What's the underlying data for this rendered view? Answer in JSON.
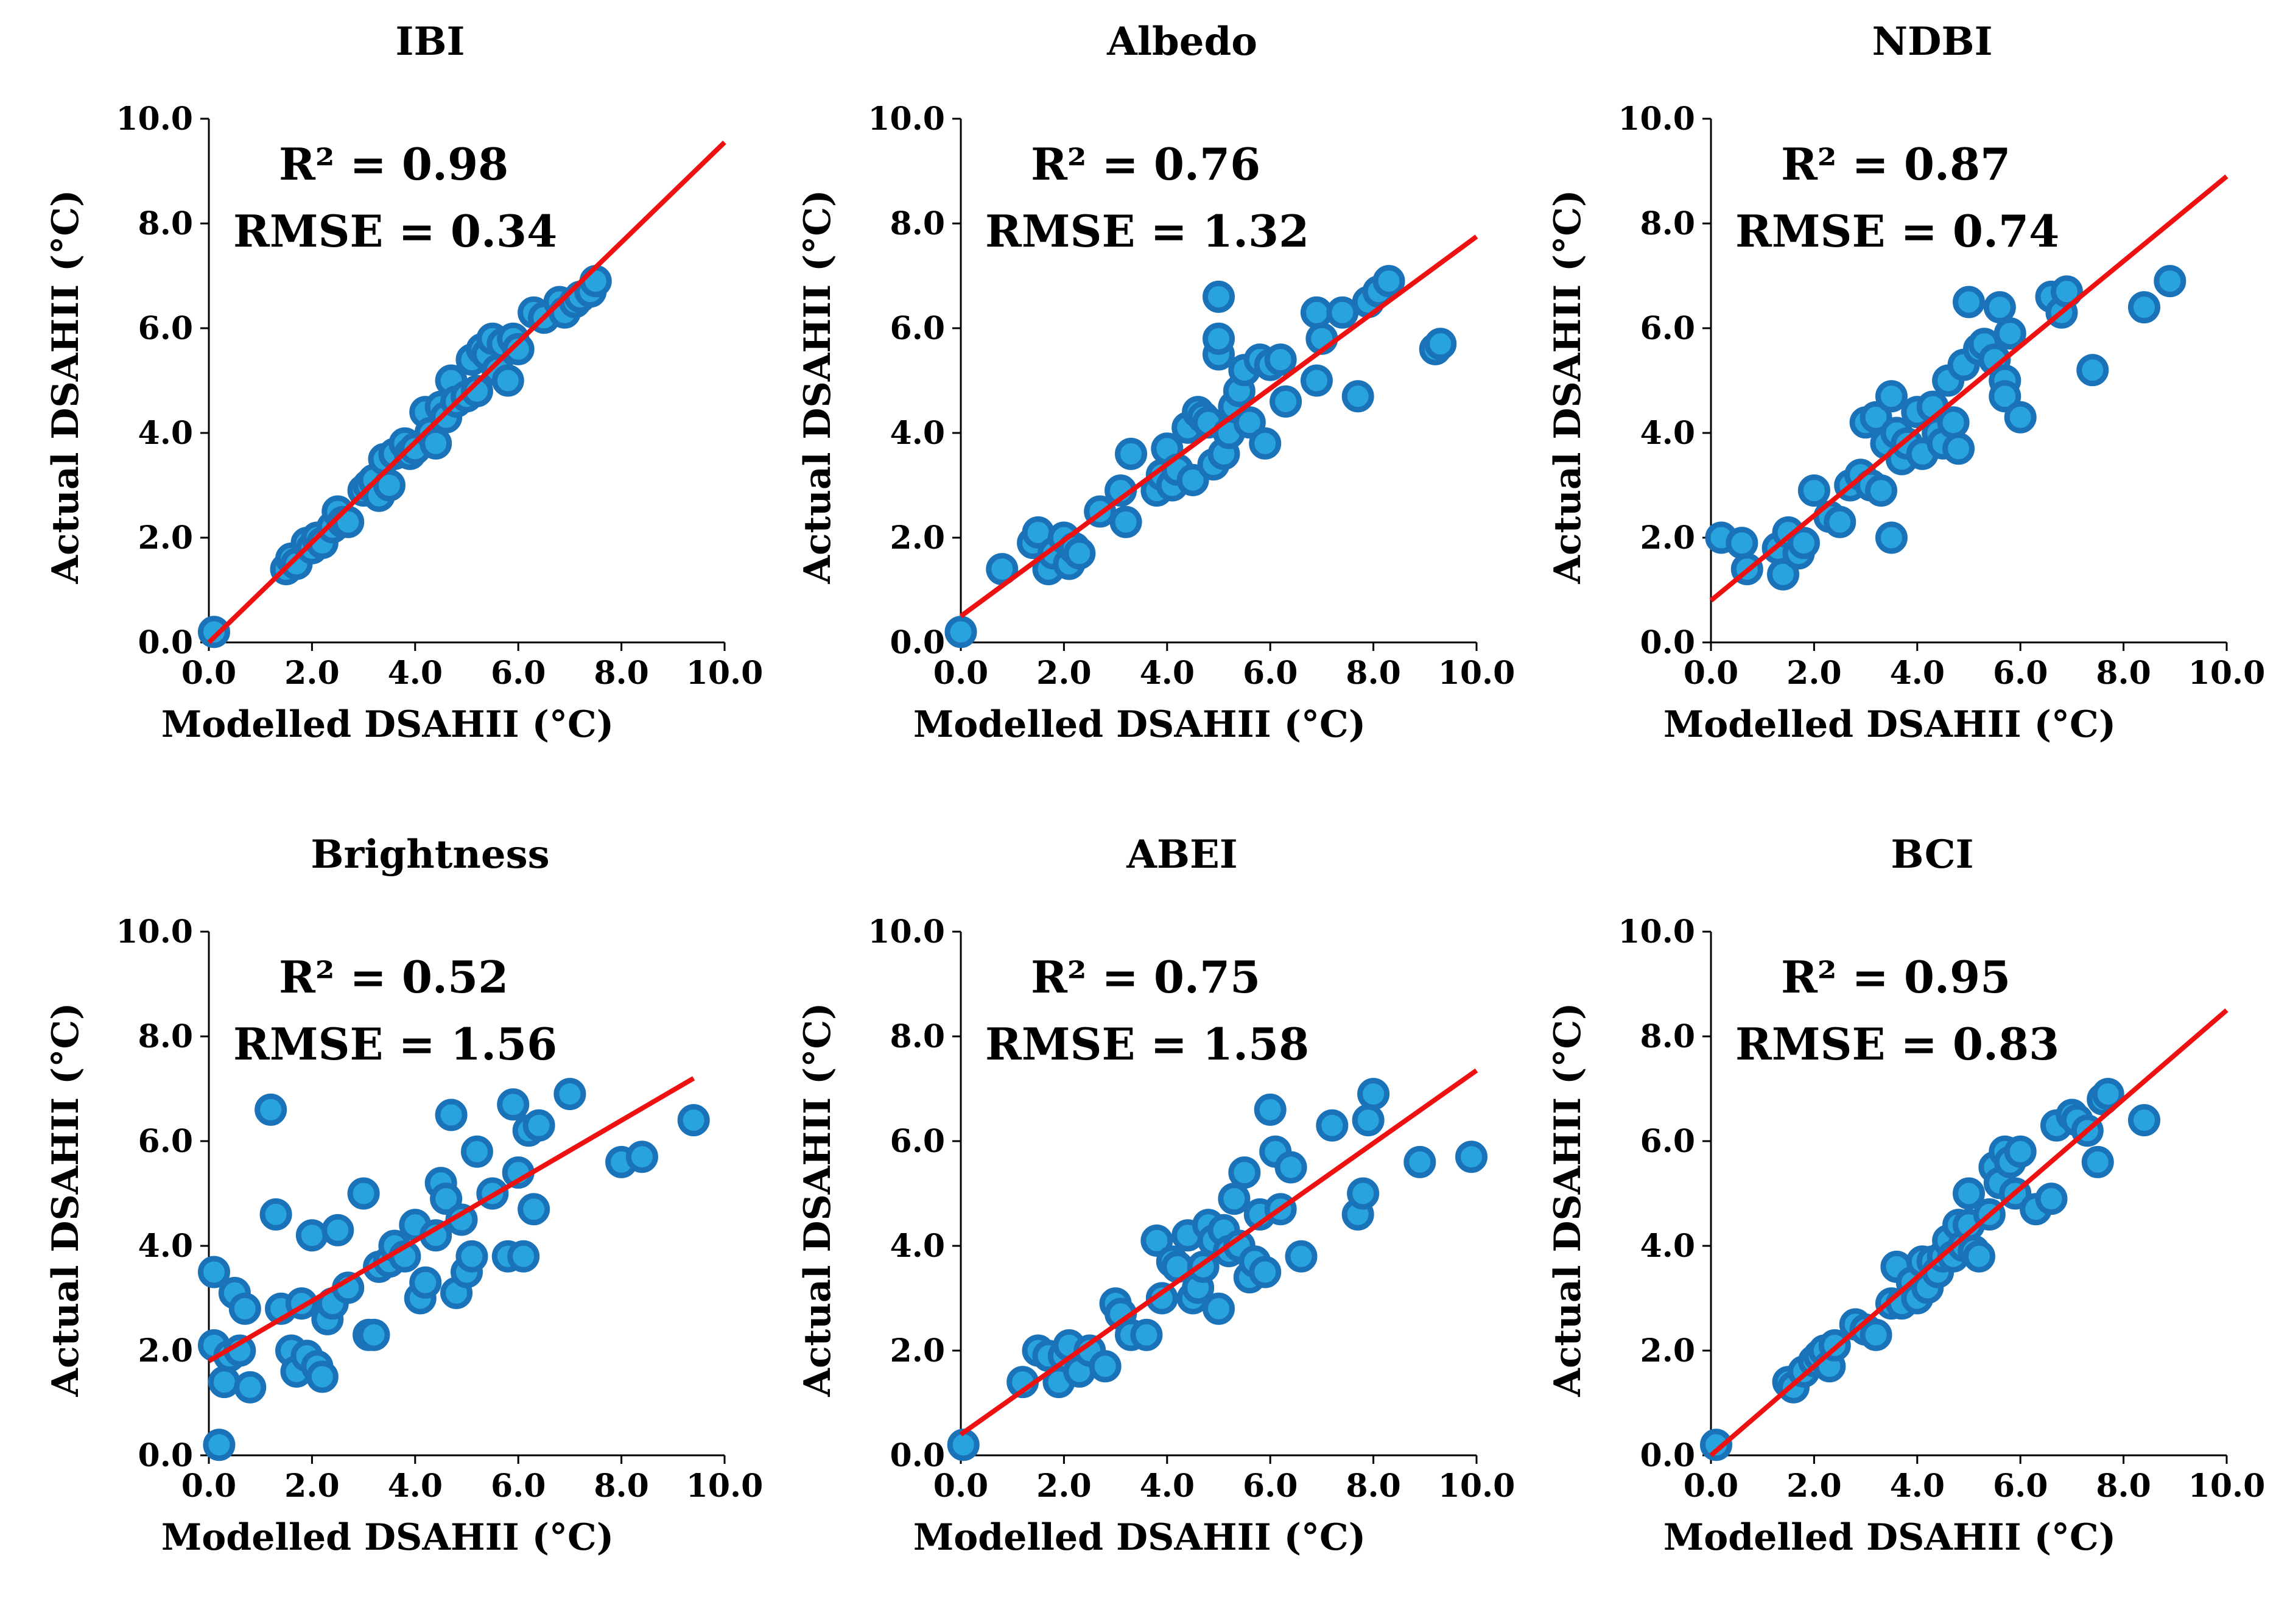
{
  "chart_data": [
    {
      "type": "scatter",
      "title": "IBI",
      "xlabel": "Modelled DSAHII (°C)",
      "ylabel": "Actual DSAHII (°C)",
      "xlim": [
        0,
        10
      ],
      "ylim": [
        0,
        10
      ],
      "ticks": [
        "0.0",
        "2.0",
        "4.0",
        "6.0",
        "8.0",
        "10.0"
      ],
      "stats": {
        "r2": "R² = 0.98",
        "rmse": "RMSE = 0.34"
      },
      "trendline": {
        "x": [
          0,
          10
        ],
        "y": [
          0.0,
          9.55
        ]
      },
      "x": [
        0.1,
        1.5,
        1.6,
        1.7,
        1.9,
        2.0,
        2.1,
        2.2,
        2.4,
        2.5,
        2.6,
        2.7,
        3.0,
        3.1,
        3.2,
        3.3,
        3.4,
        3.5,
        3.6,
        3.8,
        3.9,
        4.0,
        4.2,
        4.3,
        4.4,
        4.5,
        4.6,
        4.7,
        4.8,
        5.0,
        5.1,
        5.2,
        5.3,
        5.4,
        5.5,
        5.6,
        5.7,
        5.8,
        5.9,
        6.0,
        6.3,
        6.5,
        6.8,
        6.9,
        7.1,
        7.2,
        7.4,
        7.5
      ],
      "y": [
        0.2,
        1.4,
        1.6,
        1.5,
        1.9,
        1.8,
        2.0,
        1.9,
        2.2,
        2.5,
        2.3,
        2.3,
        2.9,
        3.0,
        3.1,
        2.8,
        3.5,
        3.0,
        3.6,
        3.8,
        3.6,
        3.7,
        4.4,
        4.0,
        3.8,
        4.5,
        4.3,
        5.0,
        4.6,
        4.7,
        5.4,
        4.8,
        5.6,
        5.5,
        5.8,
        5.2,
        5.7,
        5.0,
        5.8,
        5.6,
        6.3,
        6.2,
        6.5,
        6.3,
        6.5,
        6.6,
        6.7,
        6.9
      ]
    },
    {
      "type": "scatter",
      "title": "Albedo",
      "xlabel": "Modelled DSAHII (°C)",
      "ylabel": "Actual DSAHII (°C)",
      "xlim": [
        0,
        10
      ],
      "ylim": [
        0,
        10
      ],
      "ticks": [
        "0.0",
        "2.0",
        "4.0",
        "6.0",
        "8.0",
        "10.0"
      ],
      "stats": {
        "r2": "R² = 0.76",
        "rmse": "RMSE = 1.32"
      },
      "trendline": {
        "x": [
          0,
          10
        ],
        "y": [
          0.5,
          7.75
        ]
      },
      "x": [
        0.0,
        0.8,
        1.4,
        1.5,
        1.7,
        1.8,
        2.0,
        2.1,
        2.2,
        2.3,
        2.7,
        3.1,
        3.2,
        3.3,
        3.8,
        3.9,
        4.0,
        4.1,
        4.2,
        4.4,
        4.5,
        4.6,
        4.7,
        4.8,
        4.9,
        5.0,
        5.0,
        5.0,
        5.1,
        5.2,
        5.3,
        5.4,
        5.5,
        5.6,
        5.8,
        5.9,
        6.0,
        6.2,
        6.3,
        6.9,
        6.9,
        7.0,
        7.4,
        7.7,
        7.9,
        8.1,
        8.3,
        9.2,
        9.3
      ],
      "y": [
        0.2,
        1.4,
        1.9,
        2.1,
        1.4,
        1.7,
        2.0,
        1.5,
        1.8,
        1.7,
        2.5,
        2.9,
        2.3,
        3.6,
        2.9,
        3.2,
        3.7,
        3.0,
        3.3,
        4.1,
        3.1,
        4.4,
        4.3,
        4.2,
        3.4,
        6.6,
        5.5,
        5.8,
        3.6,
        4.0,
        4.5,
        4.8,
        5.2,
        4.2,
        5.4,
        3.8,
        5.3,
        5.4,
        4.6,
        6.3,
        5.0,
        5.8,
        6.3,
        4.7,
        6.5,
        6.7,
        6.9,
        5.6,
        5.7
      ]
    },
    {
      "type": "scatter",
      "title": "NDBI",
      "xlabel": "Modelled DSAHII (°C)",
      "ylabel": "Actual DSAHII (°C)",
      "xlim": [
        0,
        10
      ],
      "ylim": [
        0,
        10
      ],
      "ticks": [
        "0.0",
        "2.0",
        "4.0",
        "6.0",
        "8.0",
        "10.0"
      ],
      "stats": {
        "r2": "R² = 0.87",
        "rmse": "RMSE = 0.74"
      },
      "trendline": {
        "x": [
          0,
          10
        ],
        "y": [
          0.8,
          8.9
        ]
      },
      "x": [
        0.2,
        0.6,
        0.7,
        1.3,
        1.4,
        1.5,
        1.7,
        1.8,
        2.0,
        2.3,
        2.5,
        2.7,
        2.9,
        3.0,
        3.1,
        3.2,
        3.3,
        3.4,
        3.5,
        3.5,
        3.6,
        3.7,
        3.8,
        4.0,
        4.1,
        4.3,
        4.4,
        4.5,
        4.6,
        4.7,
        4.8,
        4.9,
        5.0,
        5.2,
        5.3,
        5.5,
        5.6,
        5.7,
        5.7,
        5.8,
        6.0,
        6.6,
        6.8,
        6.9,
        7.4,
        8.4,
        8.9
      ],
      "y": [
        2.0,
        1.9,
        1.4,
        1.8,
        1.3,
        2.1,
        1.7,
        1.9,
        2.9,
        2.4,
        2.3,
        3.0,
        3.2,
        4.2,
        3.0,
        4.3,
        2.9,
        3.8,
        2.0,
        4.7,
        4.0,
        3.5,
        3.8,
        4.4,
        3.6,
        4.5,
        4.0,
        3.8,
        5.0,
        4.2,
        3.7,
        5.3,
        6.5,
        5.6,
        5.7,
        5.4,
        6.4,
        5.0,
        4.7,
        5.9,
        4.3,
        6.6,
        6.3,
        6.7,
        5.2,
        6.4,
        6.9
      ]
    },
    {
      "type": "scatter",
      "title": "Brightness",
      "xlabel": "Modelled DSAHII (°C)",
      "ylabel": "Actual DSAHII (°C)",
      "xlim": [
        0,
        10
      ],
      "ylim": [
        0,
        10
      ],
      "ticks": [
        "0.0",
        "2.0",
        "4.0",
        "6.0",
        "8.0",
        "10.0"
      ],
      "stats": {
        "r2": "R² = 0.52",
        "rmse": "RMSE = 1.56"
      },
      "trendline": {
        "x": [
          0,
          9.4
        ],
        "y": [
          1.8,
          7.2
        ]
      },
      "x": [
        0.1,
        0.1,
        0.2,
        0.3,
        0.4,
        0.5,
        0.6,
        0.7,
        0.8,
        1.2,
        1.3,
        1.4,
        1.6,
        1.7,
        1.8,
        1.9,
        2.0,
        2.1,
        2.2,
        2.3,
        2.4,
        2.5,
        2.7,
        3.0,
        3.1,
        3.2,
        3.3,
        3.5,
        3.6,
        3.8,
        4.0,
        4.1,
        4.2,
        4.4,
        4.5,
        4.6,
        4.7,
        4.8,
        4.9,
        5.0,
        5.1,
        5.2,
        5.5,
        5.8,
        5.9,
        6.0,
        6.1,
        6.2,
        6.3,
        6.4,
        7.0,
        8.0,
        8.4,
        9.4
      ],
      "y": [
        3.5,
        2.1,
        0.2,
        1.4,
        1.9,
        3.1,
        2.0,
        2.8,
        1.3,
        6.6,
        4.6,
        2.8,
        2.0,
        1.6,
        2.9,
        1.9,
        4.2,
        1.7,
        1.5,
        2.6,
        2.9,
        4.3,
        3.2,
        5.0,
        2.3,
        2.3,
        3.6,
        3.7,
        4.0,
        3.8,
        4.4,
        3.0,
        3.3,
        4.2,
        5.2,
        4.9,
        6.5,
        3.1,
        4.5,
        3.5,
        3.8,
        5.8,
        5.0,
        3.8,
        6.7,
        5.4,
        3.8,
        6.2,
        4.7,
        6.3,
        6.9,
        5.6,
        5.7,
        6.4
      ]
    },
    {
      "type": "scatter",
      "title": "ABEI",
      "xlabel": "Modelled DSAHII (°C)",
      "ylabel": "Actual DSAHII (°C)",
      "xlim": [
        0,
        10
      ],
      "ylim": [
        0,
        10
      ],
      "ticks": [
        "0.0",
        "2.0",
        "4.0",
        "6.0",
        "8.0",
        "10.0"
      ],
      "stats": {
        "r2": "R² = 0.75",
        "rmse": "RMSE = 1.58"
      },
      "trendline": {
        "x": [
          0,
          10
        ],
        "y": [
          0.4,
          7.35
        ]
      },
      "x": [
        0.05,
        1.2,
        1.5,
        1.7,
        1.9,
        2.0,
        2.1,
        2.3,
        2.5,
        2.8,
        3.0,
        3.1,
        3.3,
        3.6,
        3.8,
        3.9,
        4.1,
        4.2,
        4.4,
        4.5,
        4.6,
        4.7,
        4.8,
        4.9,
        5.0,
        5.1,
        5.2,
        5.3,
        5.4,
        5.5,
        5.6,
        5.7,
        5.8,
        5.9,
        6.0,
        6.1,
        6.2,
        6.4,
        6.6,
        7.2,
        7.7,
        7.8,
        7.9,
        8.0,
        8.9,
        9.9
      ],
      "y": [
        0.2,
        1.4,
        2.0,
        1.9,
        1.4,
        1.9,
        2.1,
        1.6,
        2.0,
        1.7,
        2.9,
        2.7,
        2.3,
        2.3,
        4.1,
        3.0,
        3.7,
        3.6,
        4.2,
        3.0,
        3.2,
        3.6,
        4.4,
        4.1,
        2.8,
        4.3,
        3.9,
        4.9,
        4.0,
        5.4,
        3.4,
        3.7,
        4.6,
        3.5,
        6.6,
        5.8,
        4.7,
        5.5,
        3.8,
        6.3,
        4.6,
        5.0,
        6.4,
        6.9,
        5.6,
        5.7
      ]
    },
    {
      "type": "scatter",
      "title": "BCI",
      "xlabel": "Modelled DSAHII (°C)",
      "ylabel": "Actual DSAHII (°C)",
      "xlim": [
        0,
        10
      ],
      "ylim": [
        0,
        10
      ],
      "ticks": [
        "0.0",
        "2.0",
        "4.0",
        "6.0",
        "8.0",
        "10.0"
      ],
      "stats": {
        "r2": "R² = 0.95",
        "rmse": "RMSE = 0.83"
      },
      "trendline": {
        "x": [
          0,
          10
        ],
        "y": [
          0.0,
          8.5
        ]
      },
      "x": [
        0.1,
        1.5,
        1.6,
        1.8,
        2.0,
        2.1,
        2.2,
        2.3,
        2.4,
        2.8,
        3.0,
        3.2,
        3.5,
        3.6,
        3.7,
        3.9,
        4.0,
        4.1,
        4.2,
        4.3,
        4.4,
        4.5,
        4.6,
        4.7,
        4.8,
        4.9,
        5.0,
        5.0,
        5.1,
        5.2,
        5.4,
        5.5,
        5.6,
        5.7,
        5.8,
        5.9,
        6.0,
        6.3,
        6.6,
        6.7,
        7.0,
        7.1,
        7.3,
        7.5,
        7.6,
        7.7,
        8.4
      ],
      "y": [
        0.2,
        1.4,
        1.3,
        1.6,
        1.8,
        1.9,
        2.0,
        1.7,
        2.1,
        2.5,
        2.4,
        2.3,
        2.9,
        3.6,
        2.9,
        3.3,
        3.0,
        3.7,
        3.2,
        3.7,
        3.5,
        3.8,
        4.1,
        3.8,
        4.4,
        4.0,
        5.0,
        4.4,
        3.9,
        3.8,
        4.6,
        5.5,
        5.2,
        5.8,
        5.6,
        5.0,
        5.8,
        4.7,
        4.9,
        6.3,
        6.5,
        6.4,
        6.2,
        5.6,
        6.8,
        6.9,
        6.4
      ]
    }
  ]
}
